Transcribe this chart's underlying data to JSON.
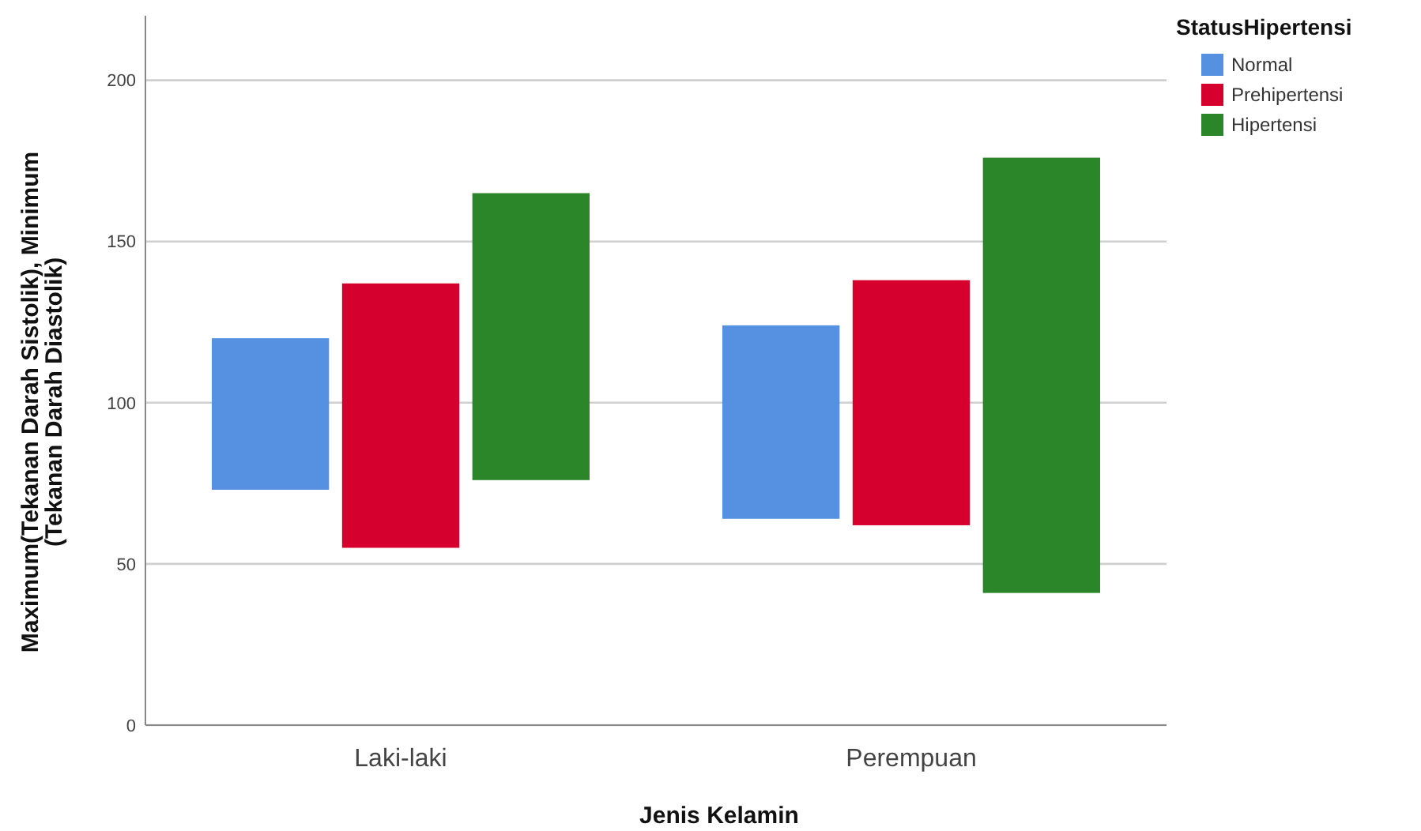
{
  "chart_data": {
    "type": "bar",
    "xlabel": "Jenis Kelamin",
    "ylabel": "Maximum(Tekanan Darah Sistolik), Minimum (Tekanan Darah Diastolik)",
    "legend_title": "StatusHipertensi",
    "categories": [
      "Laki-laki",
      "Perempuan"
    ],
    "series": [
      {
        "name": "Normal",
        "color": "#5591e0",
        "base": [
          73,
          64
        ],
        "values": [
          47,
          60
        ]
      },
      {
        "name": "Prehipertensi",
        "color": "#d5002e",
        "base": [
          55,
          62
        ],
        "values": [
          82,
          76
        ]
      },
      {
        "name": "Hipertensi",
        "color": "#2b8529",
        "base": [
          76,
          41
        ],
        "values": [
          89,
          135
        ]
      }
    ],
    "ylim": [
      0,
      220
    ],
    "yticks": [
      0,
      50,
      100,
      150,
      200
    ],
    "grid": "y",
    "legend": "top right"
  }
}
